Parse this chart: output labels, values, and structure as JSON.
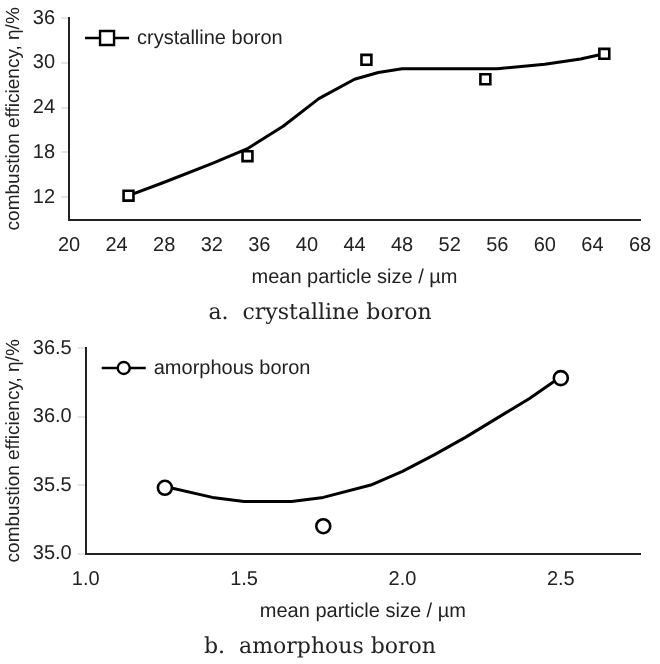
{
  "chart_data": [
    {
      "type": "scatter",
      "title": "a.  crystalline boron",
      "xlabel": "mean particle size / µm",
      "ylabel": "combustion efficiency, η/%",
      "xlim": [
        20,
        68
      ],
      "xticks": [
        20,
        24,
        28,
        32,
        36,
        40,
        44,
        48,
        52,
        56,
        60,
        64,
        68
      ],
      "ylim": [
        9,
        36
      ],
      "yticks": [
        12,
        18,
        24,
        30,
        36
      ],
      "grid": false,
      "legend": "top left",
      "series": [
        {
          "name": "crystalline boron",
          "marker": "square",
          "color": "#000000",
          "x": [
            25,
            35,
            45,
            55,
            65
          ],
          "values": [
            12.2,
            17.5,
            30.4,
            27.8,
            31.2
          ]
        },
        {
          "type": "line",
          "marker": "none",
          "line_style": "solid",
          "color": "#000000",
          "x": [
            25,
            28,
            32,
            35,
            38,
            41,
            44,
            46,
            48,
            52,
            56,
            60,
            63,
            65
          ],
          "values": [
            12.2,
            14,
            16.5,
            18.5,
            21.5,
            25.2,
            27.8,
            28.7,
            29.2,
            29.2,
            29.2,
            29.8,
            30.5,
            31.2
          ]
        }
      ]
    },
    {
      "type": "scatter",
      "title": "b.  amorphous boron",
      "xlabel": "mean particle size / µm",
      "ylabel": "combustion efficiency, η/%",
      "xlim": [
        1.0,
        2.75
      ],
      "xticks": [
        {
          "value": 1,
          "label": "1.0"
        },
        1.5,
        {
          "value": 2,
          "label": "2.0"
        },
        2.5
      ],
      "ylim": [
        35.0,
        36.5
      ],
      "yticks": [
        {
          "value": 35,
          "label": "35.0"
        },
        35.5,
        {
          "value": 36,
          "label": "36.0"
        },
        36.5
      ],
      "grid": false,
      "legend": "top left",
      "series": [
        {
          "name": "amorphous boron",
          "marker": "circle",
          "color": "#000000",
          "x": [
            1.25,
            1.75,
            2.5
          ],
          "values": [
            35.48,
            35.2,
            36.28
          ]
        },
        {
          "type": "line",
          "marker": "none",
          "line_style": "solid",
          "color": "#000000",
          "x": [
            1.25,
            1.4,
            1.5,
            1.65,
            1.75,
            1.9,
            2.0,
            2.1,
            2.2,
            2.3,
            2.4,
            2.5
          ],
          "values": [
            35.49,
            35.41,
            35.38,
            35.38,
            35.41,
            35.5,
            35.6,
            35.72,
            35.85,
            35.99,
            36.13,
            36.29
          ]
        }
      ]
    }
  ]
}
